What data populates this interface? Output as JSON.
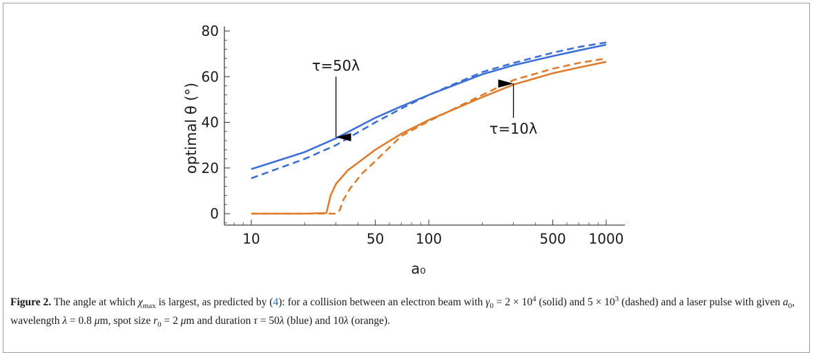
{
  "chart_data": {
    "type": "line",
    "xlabel": "a₀",
    "ylabel": "optimal θ (°)",
    "x_scale": "log",
    "xlim": [
      10,
      1000
    ],
    "ylim": [
      -5,
      82
    ],
    "x_ticks": [
      {
        "value": 10,
        "label": "10"
      },
      {
        "value": 50,
        "label": "50"
      },
      {
        "value": 100,
        "label": "100"
      },
      {
        "value": 500,
        "label": "500"
      },
      {
        "value": 1000,
        "label": "1000"
      }
    ],
    "y_ticks": [
      {
        "value": 0,
        "label": "0"
      },
      {
        "value": 20,
        "label": "20"
      },
      {
        "value": 40,
        "label": "40"
      },
      {
        "value": 60,
        "label": "60"
      },
      {
        "value": 80,
        "label": "80"
      }
    ],
    "series": [
      {
        "color": "#3b6fd8",
        "dash": false,
        "x": [
          10,
          20,
          30,
          50,
          70,
          100,
          200,
          300,
          500,
          700,
          1000
        ],
        "y": [
          19.5,
          27,
          33,
          42,
          47,
          52,
          61,
          65,
          69,
          71.5,
          74
        ]
      },
      {
        "color": "#3b6fd8",
        "dash": true,
        "x": [
          10,
          20,
          30,
          50,
          70,
          100,
          200,
          300,
          500,
          700,
          1000
        ],
        "y": [
          15.5,
          24,
          30,
          40,
          46,
          52,
          62,
          66,
          70.5,
          73,
          75
        ]
      },
      {
        "color": "#e07b2c",
        "dash": false,
        "x": [
          10,
          20,
          26.5,
          28,
          30,
          35,
          50,
          70,
          100,
          200,
          300,
          500,
          700,
          1000
        ],
        "y": [
          0,
          0,
          0.3,
          8,
          13,
          19,
          28,
          35,
          41,
          51,
          56.5,
          61.5,
          64,
          66.5
        ]
      },
      {
        "color": "#e07b2c",
        "dash": true,
        "x": [
          10,
          20,
          30,
          31.5,
          33,
          36,
          42,
          50,
          70,
          100,
          200,
          300,
          500,
          700,
          1000
        ],
        "y": [
          0,
          0,
          0,
          1.5,
          6,
          11,
          17.5,
          23,
          34,
          40.5,
          52,
          58.5,
          63.5,
          66,
          68
        ]
      }
    ],
    "annotations": [
      {
        "text": "τ=50λ",
        "arrow_from": [
          30,
          60
        ],
        "arrow_to": [
          30,
          33.5
        ]
      },
      {
        "text": "τ=10λ",
        "arrow_from": [
          300,
          42
        ],
        "arrow_to": [
          300,
          57
        ]
      }
    ]
  },
  "caption": {
    "label": "Figure 2.",
    "html": " The angle at which <i>χ</i><sub style=\"font-size:11px\">max</sub> is largest, as predicted by (<span style=\"color:#1f6fb5\">4</span>): for a collision between an electron beam with <i>γ</i><sub style=\"font-size:11px\">0</sub> = 2 × 10<sup style=\"font-size:11px\">4</sup> (solid) and 5 × 10<sup style=\"font-size:11px\">3</sup> (dashed) and a laser pulse with given <i>a</i><sub style=\"font-size:11px\">0</sub>, wavelength <i>λ</i> = 0.8 <i>μ</i>m, spot size <i>r</i><sub style=\"font-size:11px\">0</sub> = 2 <i>μ</i>m and duration <i>τ</i> = 50<i>λ</i> (blue) and 10<i>λ</i> (orange)."
  }
}
